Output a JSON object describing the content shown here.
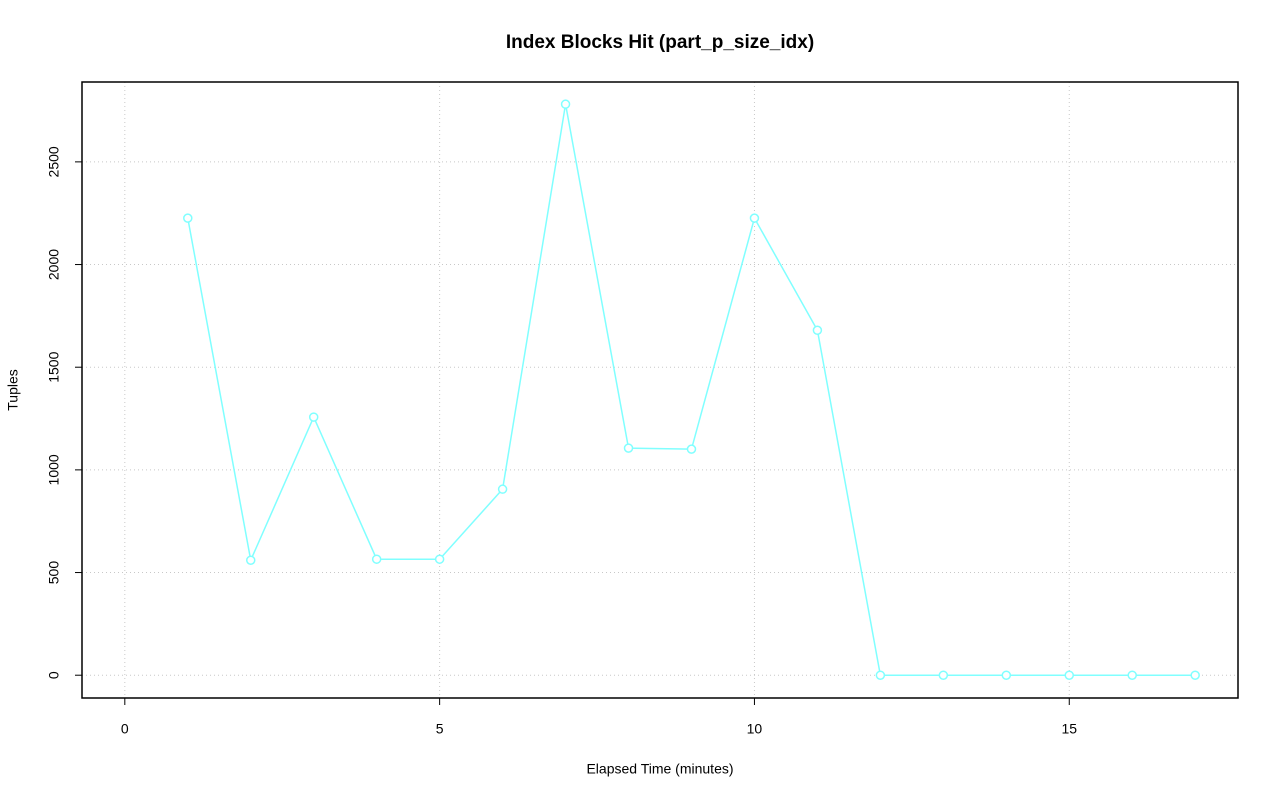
{
  "chart_data": {
    "type": "line",
    "title": "Index Blocks Hit (part_p_size_idx)",
    "x_label": "Elapsed Time (minutes)",
    "y_label": "Tuples",
    "x": [
      1,
      2,
      3,
      4,
      5,
      6,
      7,
      8,
      9,
      10,
      11,
      12,
      13,
      14,
      15,
      16,
      17
    ],
    "values": [
      2226,
      560,
      1257,
      565,
      565,
      906,
      2781,
      1106,
      1101,
      2226,
      1680,
      0,
      0,
      0,
      0,
      0,
      0
    ],
    "color": "#80ffff",
    "xlim": [
      -0.68,
      17.68
    ],
    "xticks": [
      0,
      5,
      10,
      15
    ],
    "ylim": [
      -111,
      2889
    ],
    "yticks": [
      0,
      500,
      1000,
      1500,
      2000,
      2500
    ],
    "grid": true
  }
}
